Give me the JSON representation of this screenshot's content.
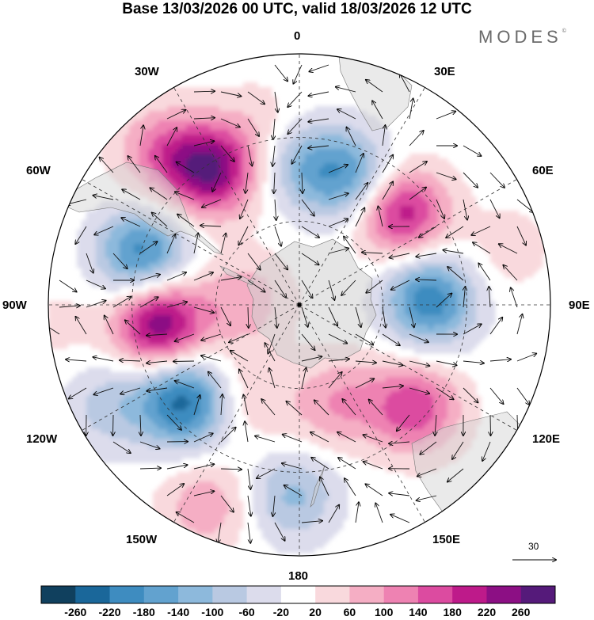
{
  "title": "Base 13/03/2026 00 UTC, valid 18/03/2026 12 UTC",
  "brand": "MODES",
  "brand_mark": "©",
  "longitude_labels": {
    "lon_0": "0",
    "lon_30e": "30E",
    "lon_60e": "60E",
    "lon_90e": "90E",
    "lon_120e": "120E",
    "lon_150e": "150E",
    "lon_180": "180",
    "lon_150w": "150W",
    "lon_120w": "120W",
    "lon_90w": "90W",
    "lon_60w": "60W",
    "lon_30w": "30W"
  },
  "reference_vector": {
    "value": "30"
  },
  "colorbar": {
    "ticks": [
      "-260",
      "-220",
      "-180",
      "-140",
      "-100",
      "-60",
      "-20",
      "20",
      "60",
      "100",
      "140",
      "180",
      "220",
      "260"
    ],
    "colors": [
      "#10405e",
      "#1a679a",
      "#3e8cc0",
      "#62a2cf",
      "#8db9dc",
      "#b9c9e2",
      "#dcdcec",
      "#ffffff",
      "#f9d9dd",
      "#f5aec4",
      "#ee82b2",
      "#dc4ba0",
      "#be1a8a",
      "#8c0f84",
      "#551a7a"
    ]
  },
  "anomaly_centers": [
    {
      "lon": 22,
      "colat": 0.55,
      "value": -150
    },
    {
      "lon": 2,
      "colat": 0.56,
      "value": -110
    },
    {
      "lon": -12,
      "colat": 0.74,
      "value": 40
    },
    {
      "lon": -33,
      "colat": 0.64,
      "value": 250
    },
    {
      "lon": -42,
      "colat": 0.82,
      "value": 120
    },
    {
      "lon": -72,
      "colat": 0.66,
      "value": -200
    },
    {
      "lon": -98,
      "colat": 0.56,
      "value": 260
    },
    {
      "lon": -85,
      "colat": 0.22,
      "value": 90
    },
    {
      "lon": -130,
      "colat": 0.6,
      "value": -240
    },
    {
      "lon": -118,
      "colat": 0.86,
      "value": -80
    },
    {
      "lon": -155,
      "colat": 0.88,
      "value": 90
    },
    {
      "lon": -178,
      "colat": 0.76,
      "value": -110
    },
    {
      "lon": 165,
      "colat": 0.44,
      "value": 60
    },
    {
      "lon": 132,
      "colat": 0.62,
      "value": 170
    },
    {
      "lon": 88,
      "colat": 0.52,
      "value": -210
    },
    {
      "lon": 48,
      "colat": 0.55,
      "value": 210
    },
    {
      "lon": 75,
      "colat": 0.86,
      "value": 40
    },
    {
      "lon": -150,
      "colat": 0.42,
      "value": 60
    },
    {
      "lon": 150,
      "colat": 0.4,
      "value": 50
    },
    {
      "lon": -95,
      "colat": 0.97,
      "value": 30
    }
  ]
}
